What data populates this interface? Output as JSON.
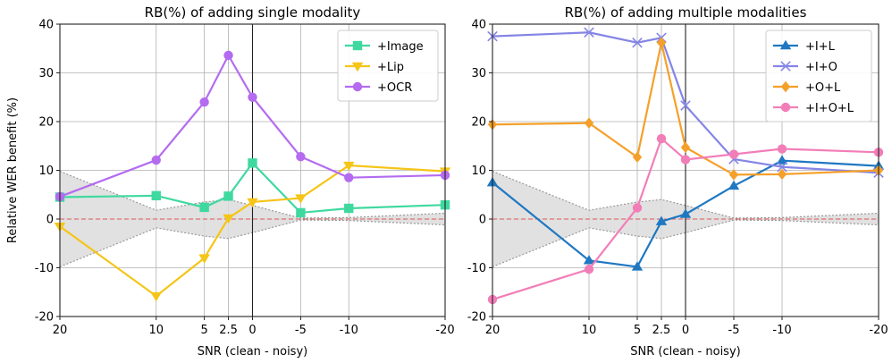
{
  "chart_data": [
    {
      "type": "line",
      "title": "RB(%) of adding single modality",
      "xlabel": "SNR (clean - noisy)",
      "ylabel": "Relative WER benefit (%)",
      "x_ticks": [
        20,
        10,
        5,
        2.5,
        0,
        -5,
        -10,
        -20
      ],
      "x_tick_labels": [
        "20",
        "10",
        "5",
        "2.5",
        "0",
        "-5",
        "-10",
        "-20"
      ],
      "ylim": [
        -20,
        40
      ],
      "y_ticks": [
        -20,
        -10,
        0,
        10,
        20,
        30,
        40
      ],
      "grid": true,
      "legend_position": "top-right",
      "reference_line": 0,
      "band": {
        "upper": [
          9.8,
          1.8,
          3.5,
          4.0,
          2.8,
          0.2,
          0.3,
          1.2
        ],
        "lower": [
          -9.8,
          -1.8,
          -3.5,
          -4.0,
          -2.8,
          -0.2,
          -0.3,
          -1.2
        ]
      },
      "series": [
        {
          "name": "+Image",
          "color": "#3fd9a0",
          "marker": "square",
          "values": [
            4.5,
            4.8,
            2.4,
            4.7,
            11.5,
            1.3,
            2.2,
            2.9
          ]
        },
        {
          "name": "+Lip",
          "color": "#f5c518",
          "marker": "triangle-down",
          "values": [
            -1.5,
            -15.8,
            -8.0,
            0.2,
            3.5,
            4.3,
            11.0,
            9.8
          ]
        },
        {
          "name": "+OCR",
          "color": "#b46bf0",
          "marker": "circle",
          "values": [
            4.6,
            12.1,
            24.0,
            33.6,
            25.0,
            12.8,
            8.5,
            9.0
          ]
        }
      ]
    },
    {
      "type": "line",
      "title": "RB(%) of adding multiple modalities",
      "xlabel": "SNR (clean - noisy)",
      "ylabel": "",
      "x_ticks": [
        20,
        10,
        5,
        2.5,
        0,
        -5,
        -10,
        -20
      ],
      "x_tick_labels": [
        "20",
        "10",
        "5",
        "2.5",
        "0",
        "-5",
        "-10",
        "-20"
      ],
      "ylim": [
        -20,
        40
      ],
      "y_ticks": [
        -20,
        -10,
        0,
        10,
        20,
        30,
        40
      ],
      "grid": true,
      "legend_position": "top-right",
      "reference_line": 0,
      "band": {
        "upper": [
          9.8,
          1.8,
          3.5,
          4.0,
          2.8,
          0.2,
          0.3,
          1.2
        ],
        "lower": [
          -9.8,
          -1.8,
          -3.5,
          -4.0,
          -2.8,
          -0.2,
          -0.3,
          -1.2
        ]
      },
      "series": [
        {
          "name": "+I+L",
          "color": "#1f78c1",
          "marker": "triangle-up",
          "values": [
            7.5,
            -8.5,
            -9.8,
            -0.5,
            1.0,
            6.8,
            12.0,
            10.9
          ]
        },
        {
          "name": "+I+O",
          "color": "#8585e6",
          "marker": "x",
          "values": [
            37.5,
            38.3,
            36.2,
            37.2,
            23.3,
            12.3,
            10.7,
            9.5
          ]
        },
        {
          "name": "+O+L",
          "color": "#f5a02a",
          "marker": "diamond",
          "values": [
            19.4,
            19.7,
            12.7,
            36.2,
            14.7,
            9.1,
            9.2,
            10.0
          ]
        },
        {
          "name": "+I+O+L",
          "color": "#f27eb8",
          "marker": "circle",
          "values": [
            -16.5,
            -10.3,
            2.3,
            16.5,
            12.2,
            13.3,
            14.4,
            13.7
          ]
        }
      ]
    }
  ]
}
